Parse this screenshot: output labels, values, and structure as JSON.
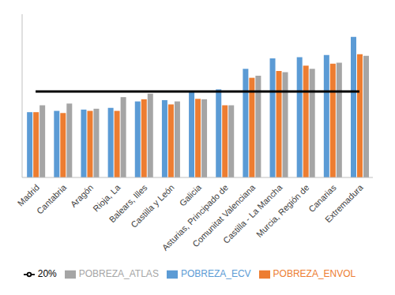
{
  "chart_data": {
    "type": "bar",
    "categories": [
      "Madrid",
      "Cantabria",
      "Aragón",
      "Rioja, La",
      "Balears, Illes",
      "Castilla y León",
      "Galicia",
      "Asturias, Principado de",
      "Comunitat Valenciana",
      "Castilla - La Mancha",
      "Murcia, Región de",
      "Canarias",
      "Extremadura"
    ],
    "series": [
      {
        "name": "POBREZA_ECV",
        "type": "bar",
        "color": "#5b9bd5",
        "values": [
          15.2,
          15.5,
          15.8,
          16.2,
          17.7,
          18.0,
          20.0,
          20.5,
          25.3,
          27.7,
          28.0,
          28.5,
          32.7
        ]
      },
      {
        "name": "POBREZA_ENVOL",
        "type": "bar",
        "color": "#ed7d31",
        "values": [
          15.2,
          15.0,
          15.5,
          15.5,
          18.2,
          17.0,
          18.3,
          16.8,
          23.2,
          24.8,
          26.0,
          26.5,
          28.7
        ]
      },
      {
        "name": "POBREZA_ATLAS",
        "type": "bar",
        "color": "#a5a5a5",
        "values": [
          16.8,
          17.2,
          16.0,
          18.7,
          19.5,
          17.7,
          18.2,
          16.8,
          23.7,
          24.5,
          25.3,
          26.7,
          28.3
        ]
      },
      {
        "name": "20%",
        "type": "line",
        "color": "#000000",
        "values": [
          20,
          20,
          20,
          20,
          20,
          20,
          20,
          20,
          20,
          20,
          20,
          20,
          20
        ]
      }
    ],
    "ylim": [
      0,
      38
    ],
    "yticks": [],
    "tick_labels": "x",
    "grid": false,
    "legend": "bottom"
  }
}
